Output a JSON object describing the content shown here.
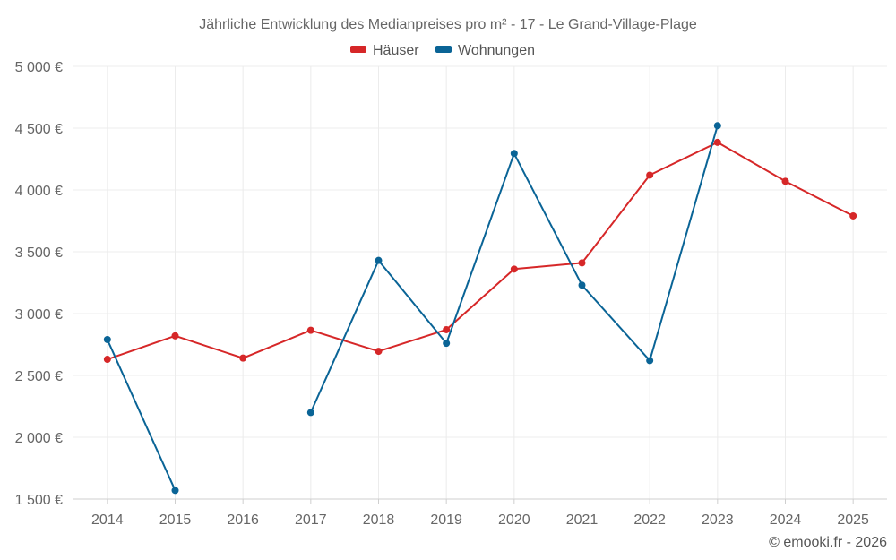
{
  "chart_data": {
    "type": "line",
    "title": "Jährliche Entwicklung des Medianpreises pro m² - 17 - Le Grand-Village-Plage",
    "categories": [
      "2014",
      "2015",
      "2016",
      "2017",
      "2018",
      "2019",
      "2020",
      "2021",
      "2022",
      "2023",
      "2024",
      "2025"
    ],
    "y_ticks": [
      1500,
      2000,
      2500,
      3000,
      3500,
      4000,
      4500,
      5000
    ],
    "y_tick_labels": [
      "1 500 €",
      "2 000 €",
      "2 500 €",
      "3 000 €",
      "3 500 €",
      "4 000 €",
      "4 500 €",
      "5 000 €"
    ],
    "ylim": [
      1500,
      5000
    ],
    "grid": true,
    "legend_position": "top-center",
    "series": [
      {
        "name": "Häuser",
        "color": "#d62728",
        "values": [
          2630,
          2820,
          2640,
          2865,
          2695,
          2870,
          3360,
          3410,
          4120,
          4385,
          4070,
          3790
        ]
      },
      {
        "name": "Wohnungen",
        "color": "#0a6496",
        "values": [
          2790,
          1570,
          null,
          2200,
          3430,
          2760,
          4295,
          3230,
          2620,
          4520,
          null,
          null
        ]
      }
    ],
    "credit": "© emooki.fr - 2026"
  }
}
